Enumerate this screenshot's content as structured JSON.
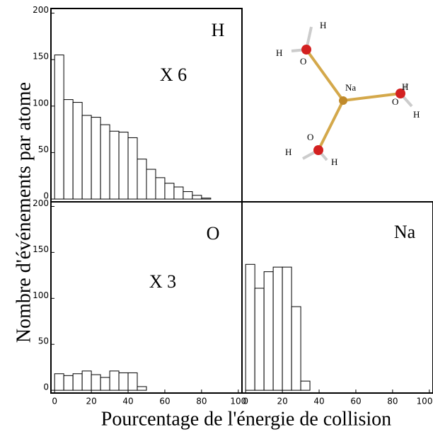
{
  "figure": {
    "ylabel": "Nombre d'événements par atome",
    "xlabel": "Pourcentage de l'énergie de collision"
  },
  "chart_data": [
    {
      "type": "histogram",
      "label": "H",
      "annotation": "X 6",
      "bins": [
        0,
        5,
        10,
        15,
        20,
        25,
        30,
        35,
        40,
        45,
        50,
        55,
        60,
        65,
        70,
        75,
        80,
        85
      ],
      "values": [
        155,
        107,
        104,
        90,
        88,
        80,
        73,
        72,
        66,
        43,
        32,
        23,
        17,
        13,
        8,
        4,
        1
      ],
      "xlim": [
        -2,
        102
      ],
      "ylim": [
        -3,
        205
      ],
      "yticks": [
        0,
        50,
        100,
        150,
        200
      ]
    },
    {
      "type": "histogram",
      "label": "O",
      "annotation": "X 3",
      "bins": [
        0,
        5,
        10,
        15,
        20,
        25,
        30,
        35,
        40,
        45,
        50
      ],
      "values": [
        18,
        16,
        18,
        21,
        17,
        14,
        21,
        19,
        19,
        4
      ],
      "xlim": [
        -2,
        102
      ],
      "ylim": [
        -3,
        205
      ],
      "xticks": [
        0,
        20,
        40,
        60,
        80,
        100
      ],
      "yticks": [
        0,
        50,
        100,
        150,
        200
      ]
    },
    {
      "type": "histogram",
      "label": "Na",
      "bins": [
        0,
        5,
        10,
        15,
        20,
        25,
        30,
        35
      ],
      "values": [
        137,
        111,
        129,
        134,
        134,
        91,
        10
      ],
      "xlim": [
        -2,
        102
      ],
      "ylim": [
        -3,
        205
      ],
      "xticks": [
        0,
        20,
        40,
        60,
        80,
        100
      ]
    }
  ],
  "molecule": {
    "atoms": [
      "H",
      "H",
      "O",
      "Na",
      "H",
      "O",
      "H",
      "O",
      "H",
      "H"
    ]
  }
}
